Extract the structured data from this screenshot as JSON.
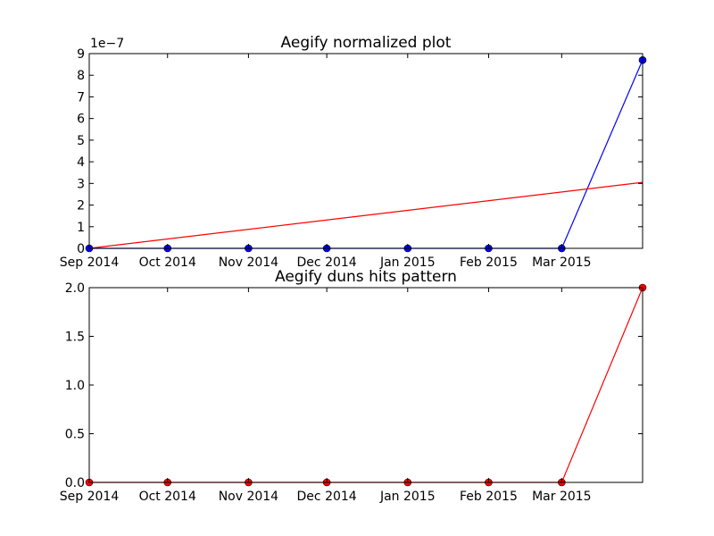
{
  "chart_data": [
    {
      "type": "line",
      "title": "Aegify normalized plot",
      "xlabel": "",
      "ylabel": "",
      "x_ticks": [
        "Sep 2014",
        "Oct 2014",
        "Nov 2014",
        "Dec 2014",
        "Jan 2015",
        "Feb 2015",
        "Mar 2015"
      ],
      "x_tick_dates": [
        "2014-09-01",
        "2014-10-01",
        "2014-11-01",
        "2014-12-01",
        "2015-01-01",
        "2015-02-01",
        "2015-03-01"
      ],
      "xlim": [
        "2014-09-01",
        "2015-04-01"
      ],
      "y_exponent_label": "1e−7",
      "y_scale_exponent": -7,
      "ylim": [
        0,
        9
      ],
      "y_ticks": [
        "0",
        "1",
        "2",
        "3",
        "4",
        "5",
        "6",
        "7",
        "8",
        "9"
      ],
      "y_tick_values": [
        0,
        1,
        2,
        3,
        4,
        5,
        6,
        7,
        8,
        9
      ],
      "grid": false,
      "series": [
        {
          "color": "#0000ff",
          "marker": "circle",
          "x": [
            "2014-09-01",
            "2014-10-01",
            "2014-11-01",
            "2014-12-01",
            "2015-01-01",
            "2015-02-01",
            "2015-03-01",
            "2015-04-01"
          ],
          "y": [
            0,
            0,
            0,
            0,
            0,
            0,
            0,
            8.7
          ]
        },
        {
          "color": "#ff0000",
          "marker": "none",
          "x": [
            "2014-09-01",
            "2015-04-01"
          ],
          "y": [
            0,
            3.05
          ]
        }
      ]
    },
    {
      "type": "line",
      "title": "Aegify duns hits pattern",
      "xlabel": "",
      "ylabel": "",
      "x_ticks": [
        "Sep 2014",
        "Oct 2014",
        "Nov 2014",
        "Dec 2014",
        "Jan 2015",
        "Feb 2015",
        "Mar 2015"
      ],
      "x_tick_dates": [
        "2014-09-01",
        "2014-10-01",
        "2014-11-01",
        "2014-12-01",
        "2015-01-01",
        "2015-02-01",
        "2015-03-01"
      ],
      "xlim": [
        "2014-09-01",
        "2015-04-01"
      ],
      "ylim": [
        0,
        2
      ],
      "y_ticks": [
        "0.0",
        "0.5",
        "1.0",
        "1.5",
        "2.0"
      ],
      "y_tick_values": [
        0,
        0.5,
        1,
        1.5,
        2
      ],
      "grid": false,
      "series": [
        {
          "color": "#ff0000",
          "marker": "circle",
          "x": [
            "2014-09-01",
            "2014-10-01",
            "2014-11-01",
            "2014-12-01",
            "2015-01-01",
            "2015-02-01",
            "2015-03-01",
            "2015-04-01"
          ],
          "y": [
            0,
            0,
            0,
            0,
            0,
            0,
            0,
            2
          ]
        }
      ]
    }
  ]
}
